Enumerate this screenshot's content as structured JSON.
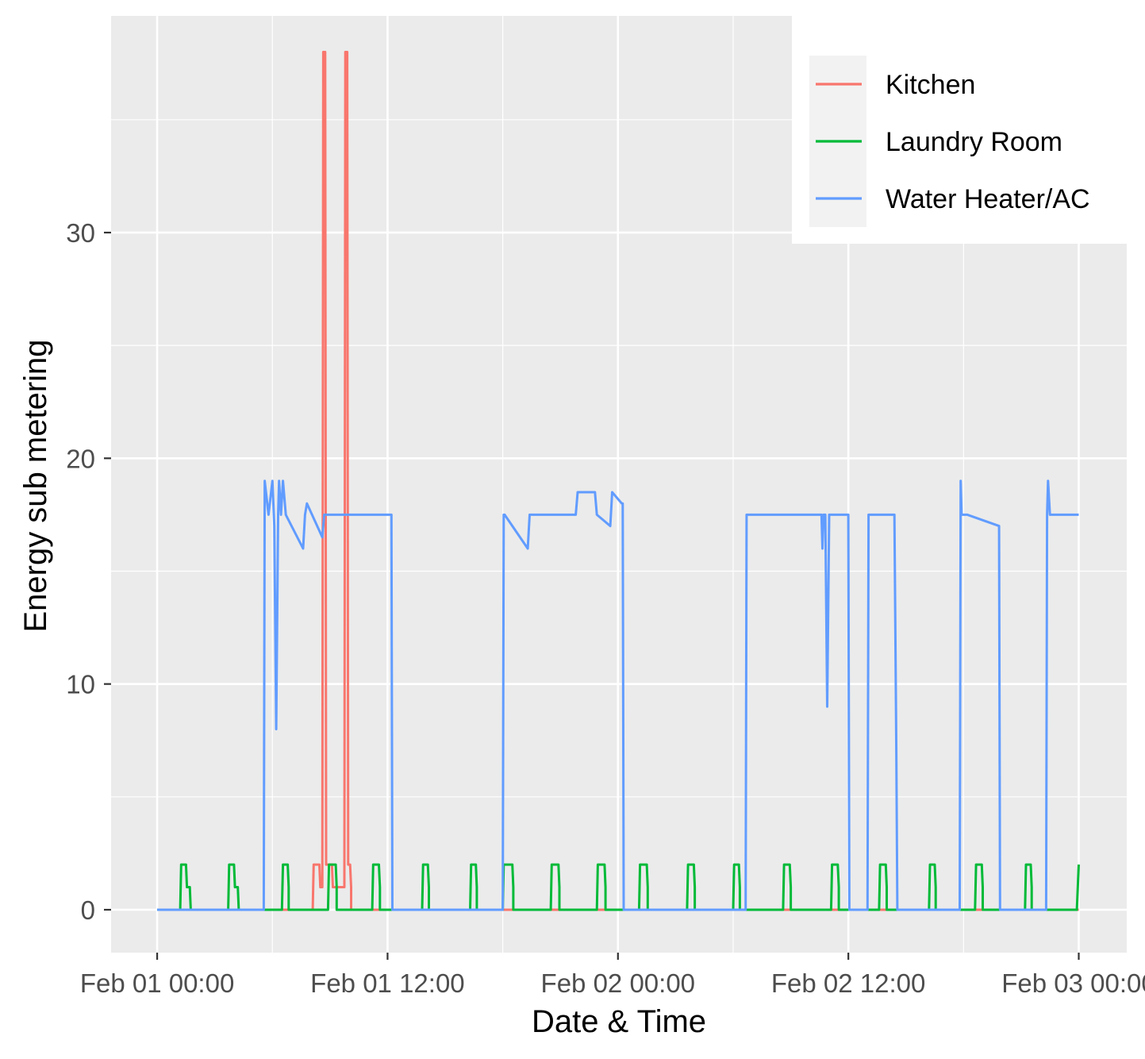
{
  "chart_data": {
    "type": "line",
    "title": "",
    "xlabel": "Date & Time",
    "ylabel": "Energy sub metering",
    "x_unit": "hours from Feb 01 00:00",
    "xlim": [
      -2.4,
      50.5
    ],
    "ylim": [
      -1.9,
      39.6
    ],
    "x_ticks": [
      0,
      12,
      24,
      36,
      48
    ],
    "x_tick_labels": [
      "Feb 01 00:00",
      "Feb 01 12:00",
      "Feb 02 00:00",
      "Feb 02 12:00",
      "Feb 03 00:00"
    ],
    "y_ticks": [
      0,
      10,
      20,
      30
    ],
    "y_tick_labels": [
      "0",
      "10",
      "20",
      "30"
    ],
    "grid": true,
    "legend_position": "right",
    "series": [
      {
        "name": "Kitchen",
        "color": "#F8766D",
        "x": [
          0,
          8.1,
          8.15,
          8.45,
          8.5,
          8.6,
          8.65,
          8.75,
          8.8,
          9.1,
          9.15,
          9.75,
          9.8,
          9.9,
          9.95,
          10.05,
          10.1,
          10.1,
          48
        ],
        "y": [
          0,
          0,
          2,
          2,
          1,
          1,
          38,
          38,
          2,
          2,
          1,
          1,
          38,
          38,
          2,
          2,
          1,
          0,
          0
        ]
      },
      {
        "name": "Laundry Room",
        "color": "#00BA38",
        "x": [
          0,
          1.2,
          1.25,
          1.5,
          1.55,
          1.7,
          1.75,
          1.75,
          3.7,
          3.75,
          4.0,
          4.05,
          4.2,
          4.25,
          4.25,
          6.5,
          6.55,
          6.8,
          6.85,
          6.85,
          8.9,
          8.95,
          9.3,
          9.35,
          9.35,
          11.2,
          11.25,
          11.55,
          11.6,
          11.6,
          13.8,
          13.85,
          14.1,
          14.15,
          14.15,
          16.3,
          16.35,
          16.6,
          16.65,
          16.65,
          18.0,
          18.05,
          18.5,
          18.55,
          18.55,
          20.5,
          20.55,
          20.9,
          20.95,
          20.95,
          22.9,
          22.95,
          23.3,
          23.35,
          23.35,
          25.1,
          25.15,
          25.5,
          25.55,
          25.55,
          27.6,
          27.65,
          27.95,
          28.0,
          28.0,
          30.0,
          30.05,
          30.3,
          30.35,
          30.35,
          32.6,
          32.65,
          32.95,
          33.0,
          33.0,
          35.1,
          35.15,
          35.45,
          35.5,
          35.5,
          37.6,
          37.65,
          37.95,
          38.0,
          38.0,
          40.2,
          40.25,
          40.5,
          40.55,
          40.55,
          42.6,
          42.65,
          42.95,
          43.0,
          43.0,
          45.2,
          45.25,
          45.5,
          45.55,
          45.55,
          47.9,
          47.95,
          48.0
        ],
        "y": [
          0,
          0,
          2,
          2,
          1,
          1,
          0,
          0,
          0,
          2,
          2,
          1,
          1,
          0,
          0,
          0,
          2,
          2,
          1,
          0,
          0,
          2,
          2,
          1,
          0,
          0,
          2,
          2,
          1,
          0,
          0,
          2,
          2,
          1,
          0,
          0,
          2,
          2,
          1,
          0,
          0,
          2,
          2,
          1,
          0,
          0,
          2,
          2,
          1,
          0,
          0,
          2,
          2,
          1,
          0,
          0,
          2,
          2,
          1,
          0,
          0,
          2,
          2,
          1,
          0,
          0,
          2,
          2,
          1,
          0,
          0,
          2,
          2,
          1,
          0,
          0,
          2,
          2,
          1,
          0,
          0,
          2,
          2,
          1,
          0,
          0,
          2,
          2,
          1,
          0,
          0,
          2,
          2,
          1,
          0,
          0,
          2,
          2,
          1,
          0,
          0,
          1,
          2
        ]
      },
      {
        "name": "Water Heater/AC",
        "color": "#619CFF",
        "x": [
          0,
          5.55,
          5.6,
          5.8,
          6.0,
          6.1,
          6.2,
          6.3,
          6.35,
          6.45,
          6.55,
          6.7,
          7.6,
          7.7,
          7.8,
          8.6,
          8.7,
          8.8,
          12.2,
          12.25,
          12.3,
          18.0,
          18.05,
          18.1,
          19.3,
          19.4,
          19.5,
          21.8,
          21.9,
          22.8,
          22.9,
          23.6,
          23.7,
          24.2,
          24.25,
          24.3,
          30.6,
          30.65,
          30.7,
          34.6,
          34.65,
          34.7,
          34.8,
          34.9,
          35.0,
          35.05,
          35.1,
          36.0,
          36.05,
          36.1,
          37.0,
          37.05,
          37.1,
          38.4,
          38.5,
          38.55,
          38.6,
          41.8,
          41.85,
          41.9,
          42.1,
          42.2,
          43.85,
          43.9,
          43.95,
          46.3,
          46.35,
          46.4,
          46.5,
          46.6,
          48
        ],
        "y": [
          0,
          0,
          19,
          17.5,
          19,
          17,
          8,
          17.5,
          19,
          17.5,
          19,
          17.5,
          16,
          17.5,
          18,
          16.5,
          17.5,
          17.5,
          17.5,
          0,
          0,
          0,
          17.5,
          17.5,
          16,
          17.5,
          17.5,
          17.5,
          18.5,
          18.5,
          17.5,
          17,
          18.5,
          18,
          18,
          0,
          0,
          0,
          17.5,
          17.5,
          16,
          17.5,
          17.5,
          9,
          17.5,
          17.5,
          17.5,
          17.5,
          0,
          0,
          0,
          17.5,
          17.5,
          17.5,
          7,
          0,
          0,
          0,
          19,
          17.5,
          17.5,
          17.5,
          17,
          0,
          0,
          0,
          17.5,
          19,
          17.5,
          17.5,
          17.5
        ]
      }
    ]
  }
}
